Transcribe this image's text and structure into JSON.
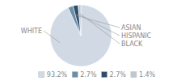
{
  "chart_data": {
    "type": "pie",
    "categories": [
      "WHITE",
      "ASIAN",
      "HISPANIC",
      "BLACK"
    ],
    "values": [
      93.2,
      2.7,
      2.7,
      1.4
    ],
    "value_labels": [
      "93.2%",
      "2.7%",
      "2.7%",
      "1.4%"
    ],
    "colors": [
      "#d0d9e4",
      "#6b8fa8",
      "#2e4d6b",
      "#bdc8d4"
    ],
    "legend": "bottom"
  }
}
